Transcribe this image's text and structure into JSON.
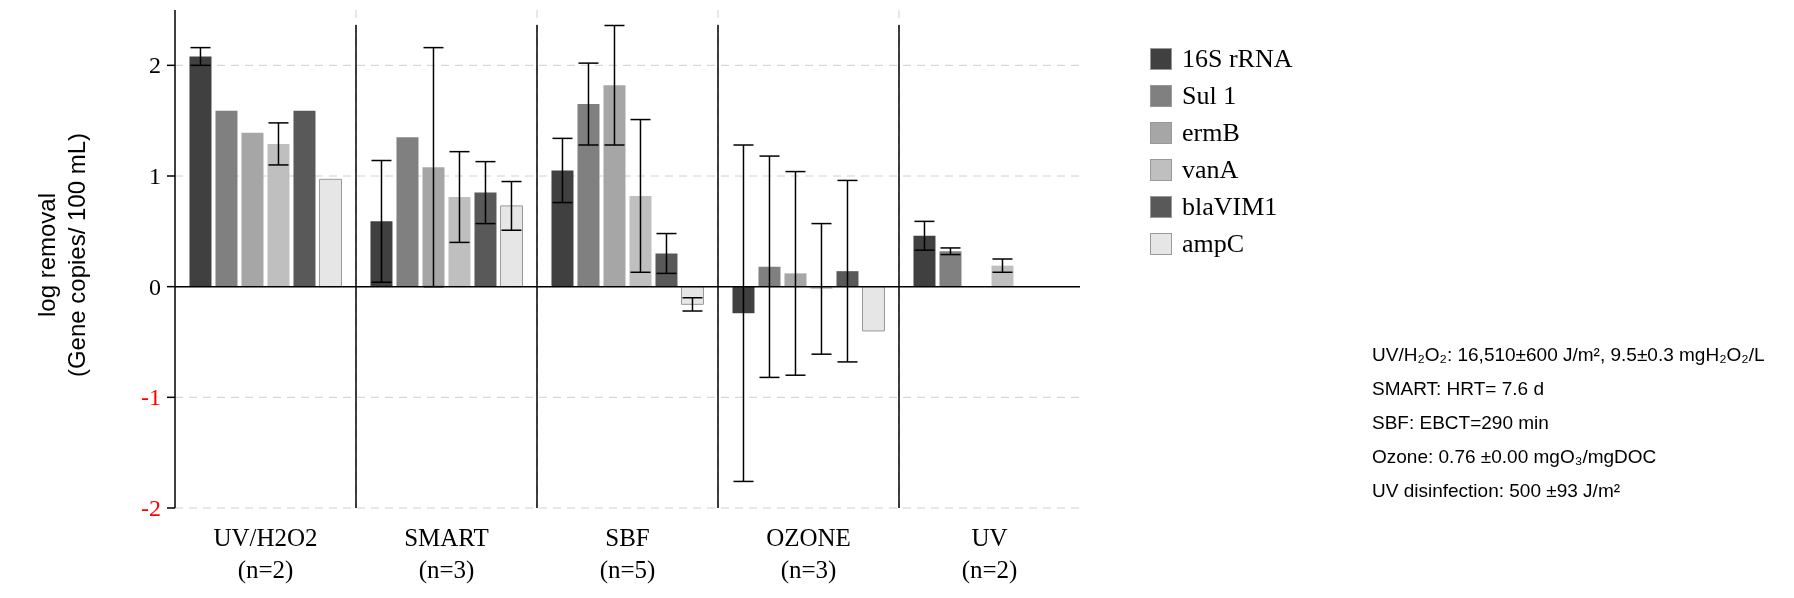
{
  "chart_data": {
    "type": "bar",
    "ylabel": "log removal\n(Gene copies/ 100 mL)",
    "categories": [
      "UV/H2O2\n(n=2)",
      "SMART\n(n=3)",
      "SBF\n(n=5)",
      "OZONE\n(n=3)",
      "UV\n(n=2)"
    ],
    "series": [
      {
        "name": "16S rRNA",
        "color": "#404040",
        "values": [
          2.08,
          0.59,
          1.05,
          -0.24,
          0.46
        ],
        "errors": [
          0.08,
          0.55,
          0.29,
          1.52,
          0.13
        ]
      },
      {
        "name": "Sul 1",
        "color": "#808080",
        "values": [
          1.59,
          1.35,
          1.65,
          0.18,
          0.32
        ],
        "errors": [
          0,
          0,
          0.37,
          1.0,
          0.03
        ]
      },
      {
        "name": "ermB",
        "color": "#a6a6a6",
        "values": [
          1.39,
          1.08,
          1.82,
          0.12,
          null
        ],
        "errors": [
          0,
          1.08,
          0.54,
          0.92,
          null
        ]
      },
      {
        "name": "vanA",
        "color": "#bfbfbf",
        "values": [
          1.29,
          0.81,
          0.82,
          -0.02,
          0.19
        ],
        "errors": [
          0.19,
          0.41,
          0.69,
          0.59,
          0.06
        ]
      },
      {
        "name": "blaVIM1",
        "color": "#595959",
        "values": [
          1.59,
          0.85,
          0.3,
          0.14,
          null
        ],
        "errors": [
          0,
          0.28,
          0.18,
          0.82,
          null
        ]
      },
      {
        "name": "ampC",
        "color": "#e6e6e6",
        "values": [
          0.97,
          0.73,
          -0.16,
          -0.4,
          null
        ],
        "errors": [
          0,
          0.22,
          0.06,
          null,
          null
        ]
      }
    ],
    "ylim": [
      -2,
      2.5
    ],
    "yticks": [
      -2,
      -1,
      0,
      1,
      2
    ],
    "grid": true,
    "legend": "top right",
    "annotations": [
      "UV/H₂O₂: 16,510±600 J/m², 9.5±0.3 mgH₂O₂/L",
      "SMART: HRT= 7.6 d",
      "SBF: EBCT=290 min",
      "Ozone: 0.76 ±0.00 mgO₃/mgDOC",
      "UV disinfection:  500 ±93 J/m²"
    ]
  }
}
